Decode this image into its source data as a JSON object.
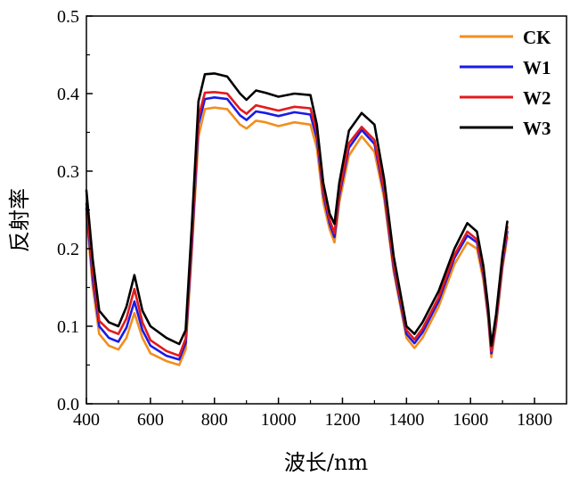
{
  "chart_data": {
    "type": "line",
    "title": "",
    "xlabel": "波长/nm",
    "ylabel": "反射率",
    "xlim": [
      400,
      1900
    ],
    "ylim": [
      0.0,
      0.5
    ],
    "x_ticks": [
      400,
      600,
      800,
      1000,
      1200,
      1400,
      1600,
      1800
    ],
    "y_ticks": [
      0.0,
      0.1,
      0.2,
      0.3,
      0.4,
      0.5
    ],
    "x_tick_labels": [
      "400",
      "600",
      "800",
      "1000",
      "1200",
      "1400",
      "1600",
      "1800"
    ],
    "y_tick_labels": [
      "0.0",
      "0.1",
      "0.2",
      "0.3",
      "0.4",
      "0.5"
    ],
    "grid": false,
    "legend_position": "top-right",
    "x": [
      400,
      420,
      440,
      470,
      500,
      525,
      550,
      575,
      600,
      650,
      690,
      710,
      730,
      750,
      770,
      800,
      840,
      880,
      900,
      930,
      960,
      1000,
      1050,
      1100,
      1120,
      1140,
      1160,
      1175,
      1190,
      1220,
      1260,
      1300,
      1330,
      1360,
      1400,
      1425,
      1450,
      1500,
      1550,
      1590,
      1620,
      1640,
      1655,
      1665,
      1680,
      1700,
      1715
    ],
    "series": [
      {
        "name": "CK",
        "color": "#F28E1E",
        "values": [
          0.245,
          0.15,
          0.09,
          0.075,
          0.07,
          0.085,
          0.117,
          0.085,
          0.065,
          0.055,
          0.05,
          0.07,
          0.2,
          0.345,
          0.38,
          0.382,
          0.38,
          0.36,
          0.355,
          0.365,
          0.363,
          0.358,
          0.363,
          0.36,
          0.33,
          0.26,
          0.225,
          0.208,
          0.26,
          0.32,
          0.345,
          0.325,
          0.265,
          0.17,
          0.085,
          0.072,
          0.085,
          0.125,
          0.18,
          0.208,
          0.2,
          0.16,
          0.11,
          0.06,
          0.1,
          0.175,
          0.215
        ]
      },
      {
        "name": "W1",
        "color": "#1A1AE6",
        "values": [
          0.252,
          0.16,
          0.1,
          0.085,
          0.08,
          0.098,
          0.132,
          0.095,
          0.075,
          0.062,
          0.057,
          0.078,
          0.21,
          0.36,
          0.393,
          0.395,
          0.393,
          0.372,
          0.366,
          0.377,
          0.375,
          0.371,
          0.376,
          0.373,
          0.342,
          0.27,
          0.232,
          0.215,
          0.268,
          0.33,
          0.353,
          0.335,
          0.272,
          0.175,
          0.09,
          0.078,
          0.092,
          0.132,
          0.188,
          0.217,
          0.208,
          0.166,
          0.115,
          0.065,
          0.105,
          0.18,
          0.222
        ]
      },
      {
        "name": "W2",
        "color": "#E31A1C",
        "values": [
          0.258,
          0.17,
          0.107,
          0.095,
          0.09,
          0.11,
          0.148,
          0.105,
          0.082,
          0.068,
          0.062,
          0.084,
          0.22,
          0.37,
          0.401,
          0.402,
          0.4,
          0.38,
          0.374,
          0.385,
          0.382,
          0.378,
          0.383,
          0.381,
          0.35,
          0.275,
          0.237,
          0.22,
          0.273,
          0.336,
          0.357,
          0.34,
          0.277,
          0.18,
          0.095,
          0.083,
          0.097,
          0.137,
          0.192,
          0.222,
          0.212,
          0.17,
          0.12,
          0.068,
          0.108,
          0.185,
          0.228
        ]
      },
      {
        "name": "W3",
        "color": "#000000",
        "values": [
          0.275,
          0.185,
          0.12,
          0.105,
          0.1,
          0.125,
          0.166,
          0.12,
          0.1,
          0.085,
          0.077,
          0.095,
          0.235,
          0.39,
          0.425,
          0.426,
          0.422,
          0.4,
          0.392,
          0.404,
          0.401,
          0.396,
          0.4,
          0.398,
          0.36,
          0.285,
          0.245,
          0.232,
          0.285,
          0.352,
          0.375,
          0.36,
          0.29,
          0.19,
          0.1,
          0.09,
          0.105,
          0.145,
          0.2,
          0.233,
          0.222,
          0.178,
          0.125,
          0.075,
          0.115,
          0.192,
          0.235
        ]
      }
    ]
  }
}
